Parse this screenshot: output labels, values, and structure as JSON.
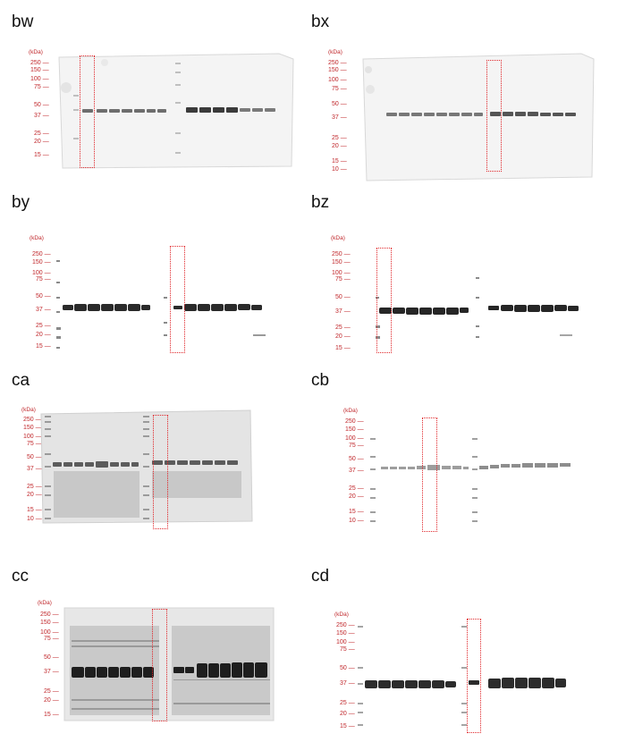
{
  "unit_label": "(kDa)",
  "panels": [
    {
      "label": "bw",
      "markers": [
        "250",
        "150",
        "100",
        "75",
        "50",
        "37",
        "25",
        "20",
        "15"
      ],
      "highlighted_lane": 1
    },
    {
      "label": "bx",
      "markers": [
        "250",
        "150",
        "100",
        "75",
        "50",
        "37",
        "25",
        "20",
        "15",
        "10"
      ],
      "highlighted_lane": 9
    },
    {
      "label": "by",
      "markers": [
        "250",
        "150",
        "100",
        "75",
        "50",
        "37",
        "25",
        "20",
        "15"
      ],
      "highlighted_lane": 8
    },
    {
      "label": "bz",
      "markers": [
        "250",
        "150",
        "100",
        "75",
        "50",
        "37",
        "25",
        "20",
        "15"
      ],
      "highlighted_lane": 1
    },
    {
      "label": "ca",
      "markers": [
        "250",
        "150",
        "100",
        "75",
        "50",
        "37",
        "25",
        "20",
        "15",
        "10"
      ],
      "highlighted_lane": 9
    },
    {
      "label": "cb",
      "markers": [
        "250",
        "150",
        "100",
        "75",
        "50",
        "37",
        "25",
        "20",
        "15",
        "10"
      ],
      "highlighted_lane": 5
    },
    {
      "label": "cc",
      "markers": [
        "250",
        "150",
        "100",
        "75",
        "50",
        "37",
        "25",
        "20",
        "15"
      ],
      "highlighted_lane": 8
    },
    {
      "label": "cd",
      "markers": [
        "250",
        "150",
        "100",
        "75",
        "50",
        "37",
        "25",
        "20",
        "15"
      ],
      "highlighted_lane": 8
    }
  ],
  "colors": {
    "marker_text": "#c0262a",
    "highlight_box": "#e0262a",
    "band": "#2a2a2a"
  }
}
